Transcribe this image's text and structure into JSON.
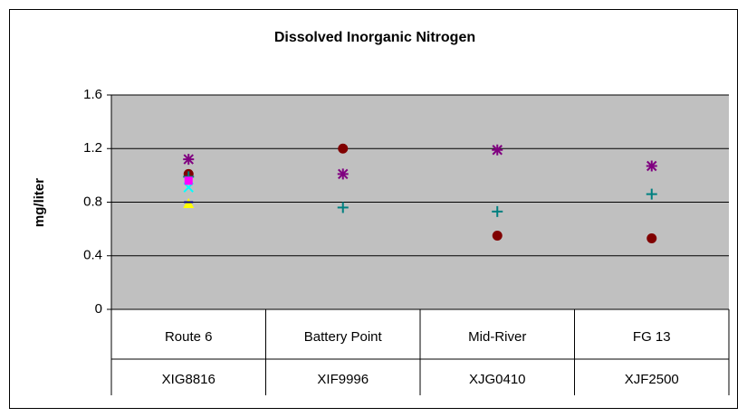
{
  "chart_data": {
    "type": "scatter",
    "title": "Dissolved Inorganic Nitrogen",
    "y_label": "mg/liter",
    "categories": [
      "Route 6",
      "Battery Point",
      "Mid-River",
      "FG 13"
    ],
    "category_codes": [
      "XIG8816",
      "XIF9996",
      "XJG0410",
      "XJF2500"
    ],
    "ylim": [
      0,
      1.6
    ],
    "yticks": [
      0,
      0.4,
      0.8,
      1.2,
      1.6
    ],
    "grid": true,
    "plot_background": "#c0c0c0",
    "series": [
      {
        "color": "#800080",
        "marker": "asterisk",
        "values": [
          1.12,
          1.01,
          1.19,
          1.07
        ]
      },
      {
        "color": "#800000",
        "marker": "circle",
        "values": [
          1.01,
          1.2,
          0.55,
          0.53
        ]
      },
      {
        "color": "#008080",
        "marker": "plus",
        "values": [
          0.99,
          0.76,
          0.73,
          0.86
        ]
      },
      {
        "color": "#ffff00",
        "marker": "triangle",
        "values": [
          0.79,
          null,
          null,
          null
        ]
      },
      {
        "color": "#00ffff",
        "marker": "x",
        "values": [
          0.91,
          null,
          null,
          null
        ]
      },
      {
        "color": "#ff00ff",
        "marker": "square",
        "values": [
          0.96,
          null,
          null,
          null
        ]
      },
      {
        "color": "#000080",
        "marker": "dash",
        "values": [
          0.8,
          null,
          null,
          null
        ]
      }
    ]
  }
}
